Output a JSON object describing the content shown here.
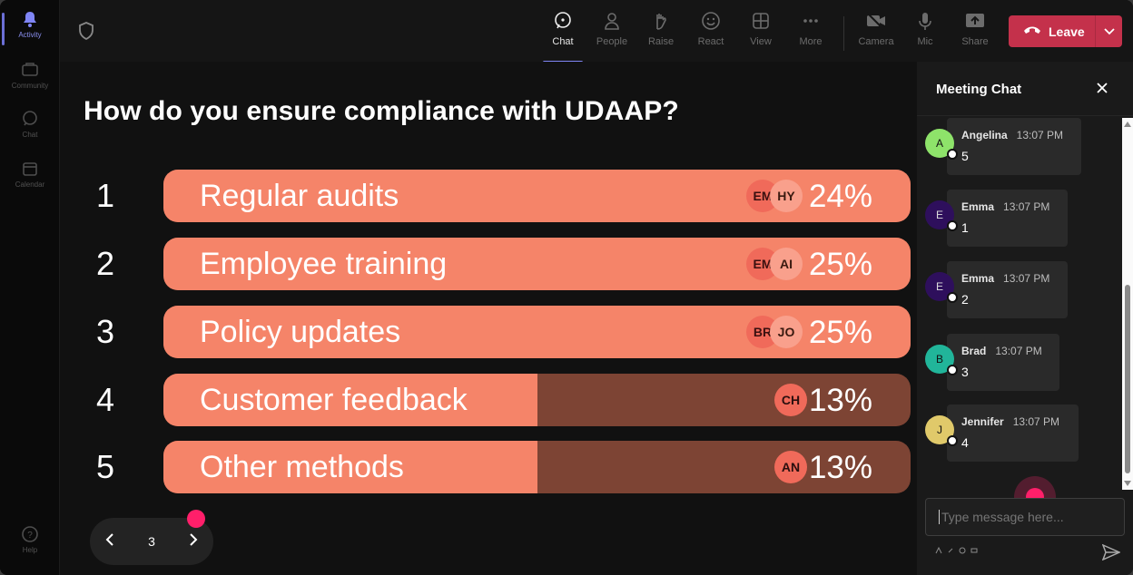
{
  "rail": {
    "items": [
      {
        "label": "Activity",
        "icon": "bell-icon",
        "active": true
      },
      {
        "label": "Community",
        "icon": "community-icon",
        "active": false
      },
      {
        "label": "Chat",
        "icon": "chat-icon",
        "active": false
      },
      {
        "label": "Calendar",
        "icon": "calendar-icon",
        "active": false
      },
      {
        "label": "Help",
        "icon": "help-icon",
        "active": false
      }
    ]
  },
  "toolbar": {
    "buttons": [
      {
        "label": "Chat",
        "icon": "chat-icon",
        "active": true
      },
      {
        "label": "People",
        "icon": "people-icon",
        "active": false
      },
      {
        "label": "Raise",
        "icon": "raise-hand-icon",
        "active": false
      },
      {
        "label": "React",
        "icon": "smiley-icon",
        "active": false
      },
      {
        "label": "View",
        "icon": "grid-icon",
        "active": false
      },
      {
        "label": "More",
        "icon": "ellipsis-icon",
        "active": false
      },
      {
        "label": "Camera",
        "icon": "camera-off-icon",
        "active": false
      },
      {
        "label": "Mic",
        "icon": "mic-icon",
        "active": false
      },
      {
        "label": "Share",
        "icon": "share-icon",
        "active": false
      }
    ],
    "leave_label": "Leave",
    "leave_color": "#c4314b"
  },
  "poll": {
    "question": "How do you ensure compliance with UDAAP?",
    "bar_color": "#f58469",
    "bar_track_color": "#7d4434",
    "options": [
      {
        "num": "1",
        "label": "Regular audits",
        "percent": "24%",
        "fill": 1.0,
        "voters": [
          "EM",
          "HY"
        ]
      },
      {
        "num": "2",
        "label": "Employee training",
        "percent": "25%",
        "fill": 1.0,
        "voters": [
          "EM",
          "AI"
        ]
      },
      {
        "num": "3",
        "label": "Policy updates",
        "percent": "25%",
        "fill": 1.0,
        "voters": [
          "BR",
          "JO"
        ]
      },
      {
        "num": "4",
        "label": "Customer feedback",
        "percent": "13%",
        "fill": 0.5,
        "voters": [
          "CH"
        ]
      },
      {
        "num": "5",
        "label": "Other methods",
        "percent": "13%",
        "fill": 0.5,
        "voters": [
          "AN"
        ]
      }
    ]
  },
  "pager": {
    "page": "3"
  },
  "chat": {
    "title": "Meeting Chat",
    "messages": [
      {
        "initial": "A",
        "name": "Angelina",
        "time": "13:07 PM",
        "text": "5",
        "color": "#8ee36a"
      },
      {
        "initial": "E",
        "name": "Emma",
        "time": "13:07 PM",
        "text": "1",
        "color": "#2e0f5c"
      },
      {
        "initial": "E",
        "name": "Emma",
        "time": "13:07 PM",
        "text": "2",
        "color": "#2e0f5c"
      },
      {
        "initial": "B",
        "name": "Brad",
        "time": "13:07 PM",
        "text": "3",
        "color": "#21b59a"
      },
      {
        "initial": "J",
        "name": "Jennifer",
        "time": "13:07 PM",
        "text": "4",
        "color": "#e0c96a"
      }
    ],
    "compose_placeholder": "Type message here..."
  }
}
